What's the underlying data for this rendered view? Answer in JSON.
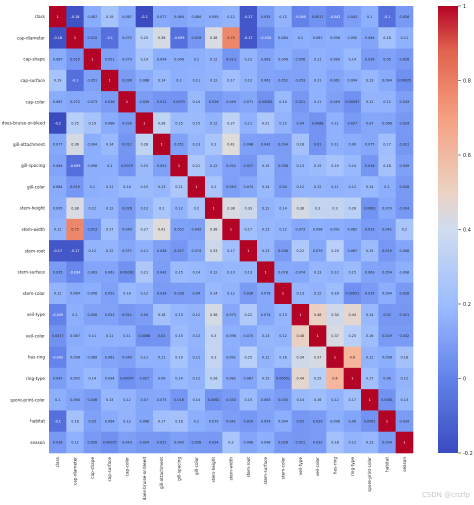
{
  "chart_data": {
    "type": "heatmap",
    "labels": [
      "class",
      "cap-diameter",
      "cap-shape",
      "cap-surface",
      "cap-color",
      "does-bruise-or-bleed",
      "gill-attachment",
      "gill-spacing",
      "gill-color",
      "stem-height",
      "stem-width",
      "stem-root",
      "stem-surface",
      "stem-color",
      "veil-type",
      "veil-color",
      "has-ring",
      "ring-type",
      "spore-print-color",
      "habitat",
      "season"
    ],
    "matrix": [
      [
        1,
        -0.18,
        0.087,
        0.19,
        0.087,
        -0.2,
        0.077,
        0.064,
        0.084,
        0.095,
        0.12,
        -0.17,
        0.035,
        0.12,
        -0.049,
        0.0017,
        -0.042,
        0.042,
        0.1,
        -0.1,
        0.026
      ],
      [
        -0.18,
        1,
        0.015,
        -0.1,
        0.072,
        0.25,
        0.36,
        -0.099,
        0.019,
        0.38,
        0.75,
        -0.17,
        -0.034,
        0.084,
        0.1,
        0.087,
        0.098,
        0.092,
        0.064,
        0.18,
        0.11
      ],
      [
        0.087,
        0.015,
        1,
        0.051,
        0.073,
        0.19,
        0.094,
        0.096,
        0.1,
        0.12,
        0.013,
        0.12,
        0.063,
        0.096,
        0.056,
        0.11,
        0.089,
        0.14,
        0.036,
        0.05,
        0.026
      ],
      [
        0.19,
        -0.1,
        0.051,
        1,
        0.036,
        0.088,
        0.14,
        0.1,
        0.11,
        0.12,
        0.17,
        0.12,
        0.061,
        0.052,
        0.053,
        0.11,
        0.061,
        0.094,
        0.13,
        0.084,
        0.00025
      ],
      [
        0.087,
        0.072,
        0.073,
        0.036,
        1,
        0.039,
        0.012,
        0.0079,
        0.14,
        0.026,
        0.049,
        0.071,
        0.00081,
        0.14,
        0.021,
        0.11,
        0.049,
        0.00047,
        0.12,
        0.12,
        0.043
      ],
      [
        -0.2,
        0.25,
        0.19,
        0.088,
        0.039,
        1,
        0.28,
        0.15,
        0.15,
        0.12,
        0.27,
        0.11,
        0.21,
        0.12,
        0.04,
        0.0068,
        0.11,
        0.027,
        0.07,
        0.066,
        0.024
      ],
      [
        0.077,
        0.36,
        0.094,
        0.14,
        0.012,
        0.28,
        1,
        0.051,
        0.13,
        0.2,
        0.41,
        0.048,
        0.042,
        0.034,
        0.18,
        0.01,
        0.11,
        0.09,
        0.075,
        0.17,
        0.021
      ],
      [
        0.064,
        -0.099,
        0.096,
        0.1,
        0.0079,
        0.15,
        0.051,
        1,
        0.21,
        0.12,
        0.052,
        0.017,
        0.15,
        0.038,
        0.13,
        0.15,
        0.19,
        0.14,
        0.016,
        0.18,
        0.049
      ],
      [
        0.084,
        0.019,
        0.1,
        0.11,
        0.14,
        0.15,
        0.13,
        0.21,
        1,
        0.2,
        0.043,
        0.074,
        0.14,
        0.04,
        0.12,
        0.12,
        0.11,
        0.12,
        0.14,
        0.1,
        0.028
      ],
      [
        0.095,
        0.38,
        0.12,
        0.12,
        0.026,
        0.12,
        0.2,
        0.12,
        0.2,
        1,
        0.38,
        0.33,
        0.12,
        0.14,
        0.36,
        0.3,
        0.3,
        0.26,
        0.0062,
        0.079,
        0.024
      ],
      [
        0.12,
        0.75,
        0.013,
        0.17,
        0.049,
        0.27,
        0.41,
        0.052,
        0.043,
        0.38,
        1,
        0.17,
        0.13,
        0.12,
        0.073,
        0.098,
        0.091,
        0.082,
        0.033,
        0.041,
        0.2
      ],
      [
        -0.17,
        -0.17,
        0.12,
        0.12,
        0.071,
        0.11,
        0.048,
        0.017,
        0.074,
        0.33,
        0.17,
        1,
        0.13,
        0.036,
        0.22,
        0.075,
        0.25,
        0.067,
        0.15,
        0.019,
        0.068
      ],
      [
        0.035,
        -0.034,
        0.063,
        0.061,
        0.00081,
        0.21,
        0.042,
        0.15,
        0.14,
        0.12,
        0.13,
        0.13,
        1,
        0.078,
        0.074,
        0.13,
        0.12,
        0.15,
        0.063,
        0.054,
        0.098
      ],
      [
        0.12,
        0.084,
        0.096,
        0.052,
        0.14,
        0.12,
        0.034,
        0.038,
        0.04,
        0.14,
        0.12,
        0.036,
        0.078,
        1,
        0.13,
        0.12,
        0.16,
        0.00051,
        0.035,
        0.094,
        0.028
      ],
      [
        -0.049,
        0.1,
        0.056,
        0.053,
        0.021,
        0.04,
        0.18,
        0.13,
        0.12,
        0.36,
        0.073,
        0.22,
        0.074,
        0.13,
        1,
        0.48,
        0.34,
        0.44,
        0.14,
        0.02,
        0.021
      ],
      [
        0.0017,
        0.087,
        0.11,
        0.11,
        0.11,
        0.0068,
        0.01,
        0.15,
        0.12,
        0.3,
        0.098,
        0.075,
        0.13,
        0.12,
        0.48,
        1,
        0.37,
        0.25,
        0.16,
        0.029,
        0.032
      ],
      [
        -0.042,
        0.098,
        0.089,
        0.061,
        0.049,
        0.11,
        0.11,
        0.19,
        0.11,
        0.3,
        0.091,
        0.25,
        0.12,
        0.16,
        0.34,
        0.37,
        1,
        0.6,
        0.12,
        0.098,
        0.18
      ],
      [
        0.042,
        0.092,
        0.14,
        0.094,
        0.00047,
        0.027,
        0.09,
        0.14,
        0.12,
        0.26,
        0.082,
        0.067,
        0.15,
        0.00051,
        0.44,
        0.25,
        0.6,
        1,
        0.17,
        0.06,
        0.12
      ],
      [
        0.1,
        0.064,
        0.036,
        0.13,
        0.12,
        0.07,
        0.075,
        0.016,
        0.14,
        0.0062,
        0.033,
        0.15,
        0.063,
        0.035,
        0.14,
        0.16,
        0.12,
        0.17,
        1,
        0.0061,
        0.13
      ],
      [
        -0.1,
        0.18,
        0.05,
        0.084,
        0.12,
        0.066,
        0.17,
        0.18,
        0.1,
        0.079,
        0.041,
        0.019,
        0.054,
        0.094,
        0.02,
        0.029,
        0.098,
        0.06,
        0.0061,
        1,
        0.034
      ],
      [
        0.026,
        0.11,
        0.026,
        0.00025,
        0.043,
        0.024,
        0.021,
        0.049,
        0.028,
        0.024,
        0.2,
        0.068,
        0.098,
        0.028,
        0.021,
        0.032,
        0.18,
        0.12,
        0.13,
        0.034,
        1
      ]
    ],
    "colormap": "coolwarm",
    "vmin": -0.2,
    "vmax": 1.0,
    "colorbar_ticks": [
      -0.2,
      0,
      0.2,
      0.4,
      0.6,
      0.8,
      1
    ],
    "title": "",
    "xlabel": "",
    "ylabel": ""
  },
  "watermark": "CSDN @cnzfp",
  "colors": {
    "low": "#3b4cc0",
    "mid": "#dddddd",
    "high": "#b40426"
  }
}
